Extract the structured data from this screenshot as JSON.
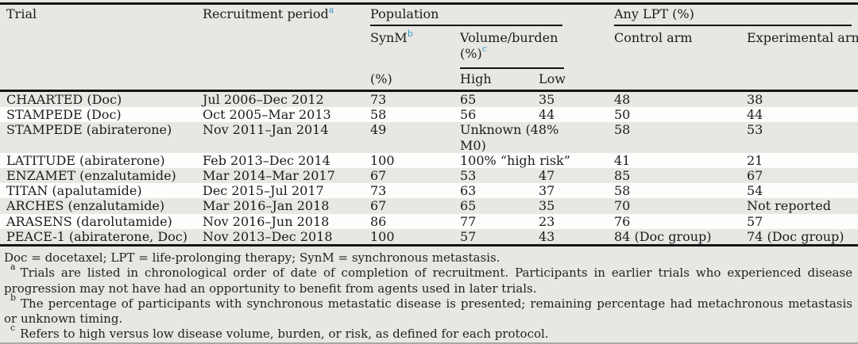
{
  "colors": {
    "page_background": "#e8e7e4",
    "row_stripe_white": "#fdfdfc",
    "rule_black": "#151515",
    "superscript_blue": "#2e9ac4",
    "text": "#1c1c1c"
  },
  "table": {
    "header": {
      "trial": "Trial",
      "recruitment": "Recruitment period",
      "recruitment_sup": "a",
      "population": "Population",
      "synm": "SynM",
      "synm_sup": "b",
      "synm_unit": "(%)",
      "volume_label": "Volume/burden",
      "volume_unit": "(%)",
      "volume_sup": "c",
      "high": "High",
      "low": "Low",
      "any_lpt": "Any LPT (%)",
      "control": "Control arm",
      "experimental": "Experimental arm"
    },
    "rows": [
      {
        "trial": "CHAARTED (Doc)",
        "period": "Jul 2006–Dec 2012",
        "synm": "73",
        "high": "65",
        "low": "35",
        "control": "48",
        "experimental": "38"
      },
      {
        "trial": "STAMPEDE (Doc)",
        "period": "Oct 2005–Mar 2013",
        "synm": "58",
        "high": "56",
        "low": "44",
        "control": "50",
        "experimental": "44"
      },
      {
        "trial": "STAMPEDE (abiraterone)",
        "period": "Nov 2011–Jan 2014",
        "synm": "49",
        "volume_combined": "Unknown (48% M0)",
        "control": "58",
        "experimental": "53",
        "tall": true
      },
      {
        "trial": "LATITUDE (abiraterone)",
        "period": "Feb 2013–Dec 2014",
        "synm": "100",
        "volume_combined": "100% “high risk”",
        "control": "41",
        "experimental": "21"
      },
      {
        "trial": "ENZAMET (enzalutamide)",
        "period": "Mar 2014–Mar 2017",
        "synm": "67",
        "high": "53",
        "low": "47",
        "control": "85",
        "experimental": "67"
      },
      {
        "trial": "TITAN (apalutamide)",
        "period": "Dec 2015–Jul 2017",
        "synm": "73",
        "high": "63",
        "low": "37",
        "control": "58",
        "experimental": "54"
      },
      {
        "trial": "ARCHES (enzalutamide)",
        "period": "Mar 2016–Jan 2018",
        "synm": "67",
        "high": "65",
        "low": "35",
        "control": "70",
        "experimental": "Not reported"
      },
      {
        "trial": "ARASENS (darolutamide)",
        "period": "Nov 2016–Jun 2018",
        "synm": "86",
        "high": "77",
        "low": "23",
        "control": "76",
        "experimental": "57"
      },
      {
        "trial": "PEACE-1 (abiraterone, Doc)",
        "period": "Nov 2013–Dec 2018",
        "synm": "100",
        "high": "57",
        "low": "43",
        "control": "84 (Doc group)",
        "experimental": "74 (Doc group)"
      }
    ]
  },
  "footnotes": {
    "abbreviations": "Doc = docetaxel; LPT = life-prolonging therapy; SynM = synchronous metastasis.",
    "items": [
      {
        "marker": "a",
        "text": "Trials are listed in chronological order of date of completion of recruitment. Participants in earlier trials who experienced disease progression may not have had an opportunity to benefit from agents used in later trials."
      },
      {
        "marker": "b",
        "text": "The percentage of participants with synchronous metastatic disease is presented; remaining percentage had metachronous metastasis or unknown timing."
      },
      {
        "marker": "c",
        "text": "Refers to high versus low disease volume, burden, or risk, as defined for each protocol."
      }
    ]
  }
}
